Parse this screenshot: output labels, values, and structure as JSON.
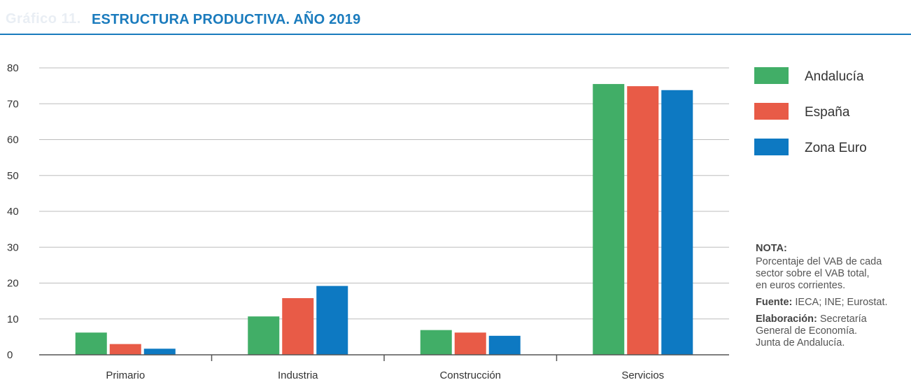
{
  "header": {
    "graph_tag": "Gráfico 11.",
    "title": "ESTRUCTURA PRODUCTIVA. AÑO 2019"
  },
  "colors": {
    "accent": "#1a7bbd",
    "grid": "#bdbdbd",
    "axis": "#555555"
  },
  "chart_data": {
    "type": "bar",
    "title": "ESTRUCTURA PRODUCTIVA. AÑO 2019",
    "xlabel": "",
    "ylabel": "",
    "categories": [
      "Primario",
      "Industria",
      "Construcción",
      "Servicios"
    ],
    "series": [
      {
        "name": "Andalucía",
        "color": "#41ae67",
        "values": [
          6.2,
          10.7,
          6.9,
          75.5
        ]
      },
      {
        "name": "España",
        "color": "#e85b47",
        "values": [
          3.0,
          15.8,
          6.2,
          74.9
        ]
      },
      {
        "name": "Zona Euro",
        "color": "#0d79c2",
        "values": [
          1.7,
          19.2,
          5.3,
          73.8
        ]
      }
    ],
    "ylim": [
      0,
      80
    ],
    "yticks": [
      "0",
      "10",
      "20",
      "30",
      "40",
      "50",
      "60",
      "70",
      "80"
    ],
    "grid": true,
    "legend_position": "right"
  },
  "notes": {
    "nota_heading": "NOTA:",
    "nota_lines": [
      "Porcentaje del VAB de cada",
      "sector sobre el VAB total,",
      "en euros corrientes."
    ],
    "fuente_label": "Fuente:",
    "fuente_text": " IECA; INE; Eurostat.",
    "elaboracion_label": "Elaboración:",
    "elaboracion_lines": [
      " Secretaría",
      "General de Economía.",
      "Junta de Andalucía."
    ]
  }
}
